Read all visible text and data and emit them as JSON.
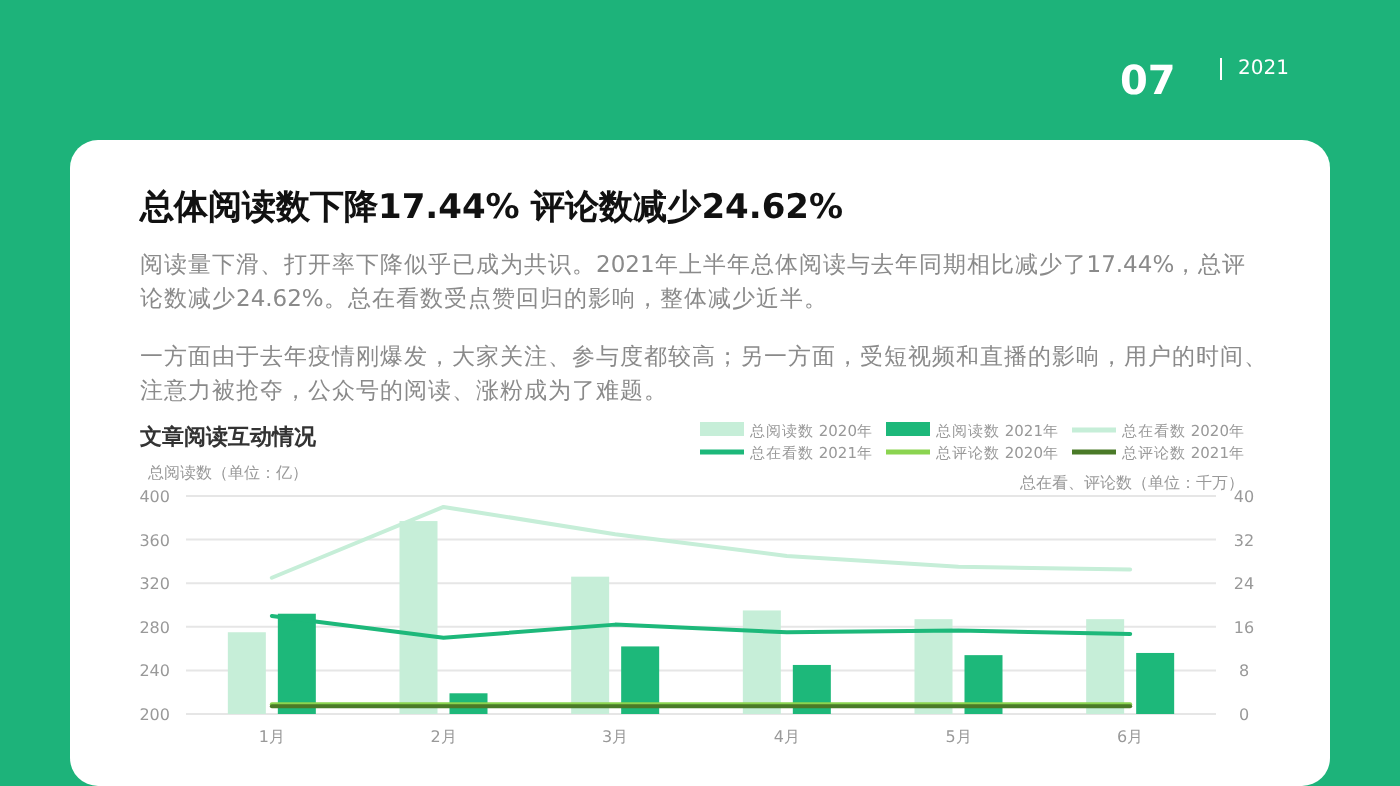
{
  "chart_data": {
    "type": "bar",
    "title": "总体阅读数下降17.44%  评论数减少24.62%",
    "subtitle": "文章阅读互动情况",
    "ylabel": "总阅读数（单位：亿）",
    "y2label": "总在看、评论数（单位：千万）",
    "annotations": [
      "07",
      "2021",
      "阅读量下滑、打开率下降似乎已成为共识。2021年上半年总体阅读与去年同期相比减少了17.44%，总评论数减少24.62%。总在看数受点赞回归的影响，整体减少近半。",
      "一方面由于去年疫情刚爆发，大家关注、参与度都较高；另一方面，受短视频和直播的影响，用户的时间、注意力被抢夺，公众号的阅读、涨粉成为了难题。"
    ],
    "categories": [
      "1月",
      "2月",
      "3月",
      "4月",
      "5月",
      "6月"
    ],
    "series": [
      {
        "name": "总阅读数 2020年",
        "color": "#c6eed8",
        "values": [
          275,
          377,
          326,
          295,
          287,
          287
        ]
      },
      {
        "name": "总阅读数 2021年",
        "color": "#1db87a",
        "values": [
          292,
          219,
          262,
          245,
          254,
          256
        ]
      },
      {
        "name": "总在看数 2020年",
        "type": "line",
        "axis": "y2",
        "color": "#c6eed8",
        "values": [
          25,
          38,
          33,
          29,
          27,
          26.5
        ]
      },
      {
        "name": "总在看数 2021年",
        "type": "line",
        "axis": "y2",
        "color": "#1db87a",
        "values": [
          18,
          14,
          16.4,
          15,
          15.3,
          14.7
        ]
      },
      {
        "name": "总评论数 2020年",
        "type": "line",
        "axis": "y2",
        "color": "#8bd450",
        "values": [
          1.8,
          1.8,
          1.8,
          1.8,
          1.8,
          1.8
        ]
      },
      {
        "name": "总评论数 2021年",
        "type": "line",
        "axis": "y2",
        "color": "#4a7a28",
        "values": [
          1.4,
          1.4,
          1.4,
          1.4,
          1.4,
          1.4
        ]
      }
    ],
    "ylim": [
      200,
      400
    ],
    "yticks": [
      200,
      240,
      280,
      320,
      360,
      400
    ],
    "y2lim": [
      0,
      40
    ],
    "y2ticks": [
      0,
      8,
      16,
      24,
      32,
      40
    ],
    "grid": "y",
    "legend": "top right"
  }
}
